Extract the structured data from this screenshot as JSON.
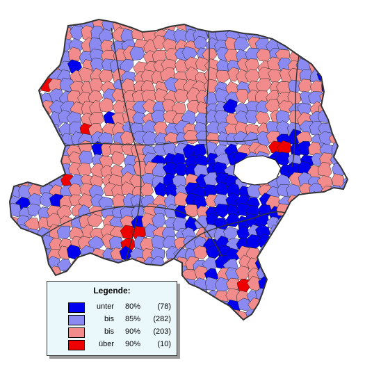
{
  "map": {
    "colors": {
      "unter_80": "#0000ee",
      "bis_85": "#8a8af2",
      "bis_90": "#f28c8c",
      "ueber_90": "#ee0000",
      "border": "#333333",
      "district_border": "#222222",
      "hole": "#ffffff"
    }
  },
  "legend": {
    "title": "Legende:",
    "items": [
      {
        "label": "unter",
        "percent": "80%",
        "count": "(78)",
        "color": "#0000ee"
      },
      {
        "label": "bis",
        "percent": "85%",
        "count": "(282)",
        "color": "#8a8af2"
      },
      {
        "label": "bis",
        "percent": "90%",
        "count": "(203)",
        "color": "#f28c8c"
      },
      {
        "label": "über",
        "percent": "90%",
        "count": "(10)",
        "color": "#ee0000"
      }
    ]
  }
}
